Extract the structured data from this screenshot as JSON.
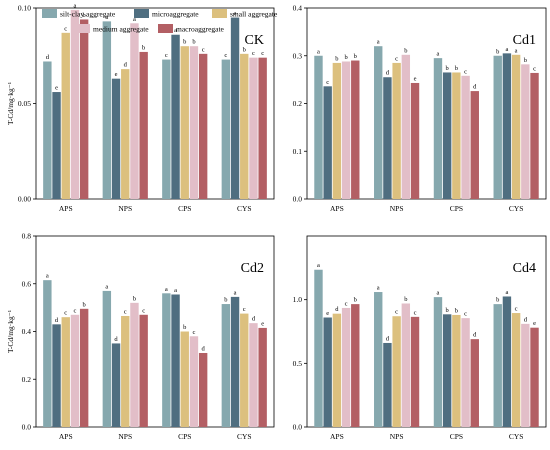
{
  "chart_data": [
    {
      "type": "bar",
      "title": "CK",
      "ylabel": "T-Cd/mg·kg⁻¹",
      "ylim": [
        0,
        0.1
      ],
      "yticks": [
        "0.00",
        "0.05",
        "0.10"
      ],
      "categories": [
        "APS",
        "NPS",
        "CPS",
        "CYS"
      ],
      "series": [
        {
          "name": "silt-clay aggregate",
          "values": [
            0.072,
            0.093,
            0.073,
            0.073
          ],
          "labels": [
            "d",
            "a",
            "c",
            "c"
          ]
        },
        {
          "name": "microaggregate",
          "values": [
            0.056,
            0.063,
            0.086,
            0.095
          ],
          "labels": [
            "e",
            "e",
            "a",
            "a"
          ]
        },
        {
          "name": "small aggregate",
          "values": [
            0.087,
            0.068,
            0.08,
            0.076
          ],
          "labels": [
            "c",
            "d",
            "b",
            "b"
          ]
        },
        {
          "name": "medium aggregate",
          "values": [
            0.099,
            0.092,
            0.08,
            0.074
          ],
          "labels": [
            "a",
            "a",
            "b",
            "c"
          ]
        },
        {
          "name": "macroaggregate",
          "values": [
            0.094,
            0.077,
            0.076,
            0.074
          ],
          "labels": [
            "b",
            "b",
            "c",
            "c"
          ]
        }
      ]
    },
    {
      "type": "bar",
      "title": "Cd1",
      "ylabel": "",
      "ylim": [
        0,
        0.4
      ],
      "yticks": [
        "0.0",
        "0.1",
        "0.2",
        "0.3",
        "0.4"
      ],
      "categories": [
        "APS",
        "NPS",
        "CPS",
        "CYS"
      ],
      "series": [
        {
          "name": "silt-clay aggregate",
          "values": [
            0.3,
            0.32,
            0.295,
            0.3
          ],
          "labels": [
            "a",
            "a",
            "a",
            "b"
          ]
        },
        {
          "name": "microaggregate",
          "values": [
            0.236,
            0.255,
            0.265,
            0.305
          ],
          "labels": [
            "c",
            "d",
            "b",
            "a"
          ]
        },
        {
          "name": "small aggregate",
          "values": [
            0.285,
            0.285,
            0.265,
            0.302
          ],
          "labels": [
            "b",
            "c",
            "b",
            "a"
          ]
        },
        {
          "name": "medium aggregate",
          "values": [
            0.288,
            0.302,
            0.258,
            0.282
          ],
          "labels": [
            "b",
            "b",
            "c",
            "b"
          ]
        },
        {
          "name": "macroaggregate",
          "values": [
            0.29,
            0.243,
            0.226,
            0.264
          ],
          "labels": [
            "b",
            "e",
            "d",
            "c"
          ]
        }
      ]
    },
    {
      "type": "bar",
      "title": "Cd2",
      "ylabel": "T-Cd/mg·kg⁻¹",
      "ylim": [
        0,
        0.8
      ],
      "yticks": [
        "0.0",
        "0.2",
        "0.4",
        "0.6",
        "0.8"
      ],
      "categories": [
        "APS",
        "NPS",
        "CPS",
        "CYS"
      ],
      "series": [
        {
          "name": "silt-clay aggregate",
          "values": [
            0.615,
            0.57,
            0.56,
            0.515
          ],
          "labels": [
            "a",
            "a",
            "a",
            "b"
          ]
        },
        {
          "name": "microaggregate",
          "values": [
            0.43,
            0.35,
            0.555,
            0.545
          ],
          "labels": [
            "d",
            "d",
            "a",
            "a"
          ]
        },
        {
          "name": "small aggregate",
          "values": [
            0.46,
            0.465,
            0.4,
            0.475
          ],
          "labels": [
            "c",
            "c",
            "b",
            "c"
          ]
        },
        {
          "name": "medium aggregate",
          "values": [
            0.47,
            0.52,
            0.38,
            0.435
          ],
          "labels": [
            "c",
            "b",
            "c",
            "d"
          ]
        },
        {
          "name": "macroaggregate",
          "values": [
            0.495,
            0.47,
            0.31,
            0.415
          ],
          "labels": [
            "b",
            "c",
            "d",
            "e"
          ]
        }
      ]
    },
    {
      "type": "bar",
      "title": "Cd4",
      "ylabel": "",
      "ylim": [
        0,
        1.5
      ],
      "yticks": [
        "0.0",
        "0.5",
        "1.0"
      ],
      "categories": [
        "APS",
        "NPS",
        "CPS",
        "CYS"
      ],
      "series": [
        {
          "name": "silt-clay aggregate",
          "values": [
            1.235,
            1.06,
            1.02,
            0.965
          ],
          "labels": [
            "a",
            "a",
            "a",
            "b"
          ]
        },
        {
          "name": "microaggregate",
          "values": [
            0.86,
            0.66,
            0.885,
            1.025
          ],
          "labels": [
            "e",
            "d",
            "b",
            "a"
          ]
        },
        {
          "name": "small aggregate",
          "values": [
            0.89,
            0.87,
            0.88,
            0.895
          ],
          "labels": [
            "d",
            "c",
            "b",
            "c"
          ]
        },
        {
          "name": "medium aggregate",
          "values": [
            0.935,
            0.97,
            0.855,
            0.81
          ],
          "labels": [
            "c",
            "b",
            "c",
            "d"
          ]
        },
        {
          "name": "macroaggregate",
          "values": [
            0.965,
            0.865,
            0.69,
            0.78
          ],
          "labels": [
            "b",
            "c",
            "d",
            "e"
          ]
        }
      ]
    }
  ],
  "legend": {
    "items": [
      "silt-clay aggregate",
      "microaggregate",
      "small aggregate",
      "medium aggregate",
      "macroaggregate"
    ],
    "placement": "top (in CK panel)"
  },
  "colors": [
    "#86a8ae",
    "#4f6e80",
    "#dcc07e",
    "#e2bec8",
    "#b35f64"
  ]
}
